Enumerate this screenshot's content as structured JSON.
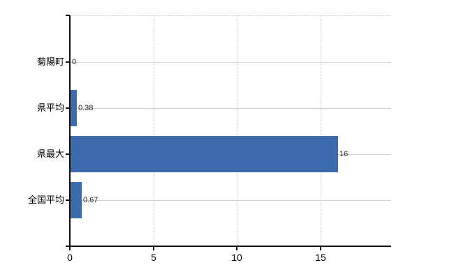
{
  "chart_data": {
    "type": "bar",
    "orientation": "horizontal",
    "title": "",
    "xlabel": "",
    "ylabel": "",
    "categories": [
      "菊陽町",
      "県平均",
      "県最大",
      "全国平均"
    ],
    "values": [
      0,
      0.38,
      16,
      0.67
    ],
    "value_labels": [
      "0",
      "0.38",
      "16",
      "0.67"
    ],
    "x_ticks": [
      "0",
      "5",
      "10",
      "15"
    ],
    "x_tick_values": [
      0,
      5,
      10,
      15
    ],
    "xlim": [
      0,
      19.2
    ],
    "grid": true,
    "legend": false,
    "colors": {
      "bar": "#3c6cae",
      "axis": "#111111",
      "grid_horizontal": "#ccd6cc",
      "grid_vertical": "#d6d0d8",
      "label_text": "#000000",
      "value_text": "#1a1a1a",
      "background": "#ffffff"
    }
  }
}
